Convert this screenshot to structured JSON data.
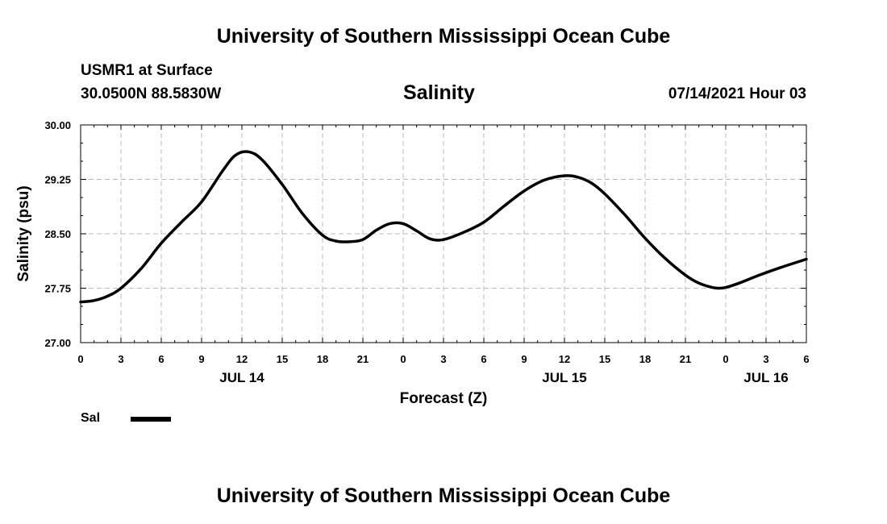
{
  "page": {
    "title_top": "University of Southern Mississippi Ocean Cube",
    "title_bottom": "University of Southern Mississippi Ocean Cube",
    "station": "USMR1 at Surface",
    "coords": "30.0500N  88.5830W",
    "datetime": "07/14/2021 Hour 03"
  },
  "chart_data": {
    "type": "line",
    "title": "Salinity",
    "xlabel": "Forecast (Z)",
    "ylabel": "Salinity (psu)",
    "xlim": [
      0,
      54
    ],
    "ylim": [
      27.0,
      30.0
    ],
    "x_tick_values": [
      0,
      3,
      6,
      9,
      12,
      15,
      18,
      21,
      24,
      27,
      30,
      33,
      36,
      39,
      42,
      45,
      48,
      51,
      54
    ],
    "x_tick_labels": [
      "0",
      "3",
      "6",
      "9",
      "12",
      "15",
      "18",
      "21",
      "0",
      "3",
      "6",
      "9",
      "12",
      "15",
      "18",
      "21",
      "0",
      "3",
      "6"
    ],
    "y_ticks": [
      "27.00",
      "27.75",
      "28.50",
      "29.25",
      "30.00"
    ],
    "date_labels": [
      {
        "text": "JUL 14",
        "x": 12
      },
      {
        "text": "JUL 15",
        "x": 36
      },
      {
        "text": "JUL 16",
        "x": 51
      }
    ],
    "grid": true,
    "series": [
      {
        "name": "Sal",
        "x": [
          0,
          1,
          2,
          3,
          4.5,
          6,
          7.5,
          9,
          10.5,
          11.5,
          12.5,
          13.5,
          15,
          16.5,
          18,
          19,
          20,
          21,
          22,
          23,
          24,
          25,
          26,
          27,
          28.5,
          30,
          31.5,
          33,
          34.5,
          36,
          37,
          38,
          39,
          40.5,
          42,
          43.5,
          45,
          46,
          47,
          47.5,
          48,
          49,
          50.5,
          52,
          54
        ],
        "values": [
          27.56,
          27.58,
          27.64,
          27.75,
          28.02,
          28.37,
          28.66,
          28.94,
          29.35,
          29.58,
          29.63,
          29.52,
          29.18,
          28.78,
          28.48,
          28.4,
          28.39,
          28.42,
          28.55,
          28.64,
          28.64,
          28.54,
          28.43,
          28.42,
          28.52,
          28.66,
          28.88,
          29.09,
          29.24,
          29.3,
          29.28,
          29.2,
          29.05,
          28.76,
          28.44,
          28.16,
          27.93,
          27.82,
          27.76,
          27.75,
          27.76,
          27.82,
          27.93,
          28.03,
          28.15
        ]
      }
    ]
  },
  "legend": {
    "label": "Sal",
    "color": "#000000"
  }
}
